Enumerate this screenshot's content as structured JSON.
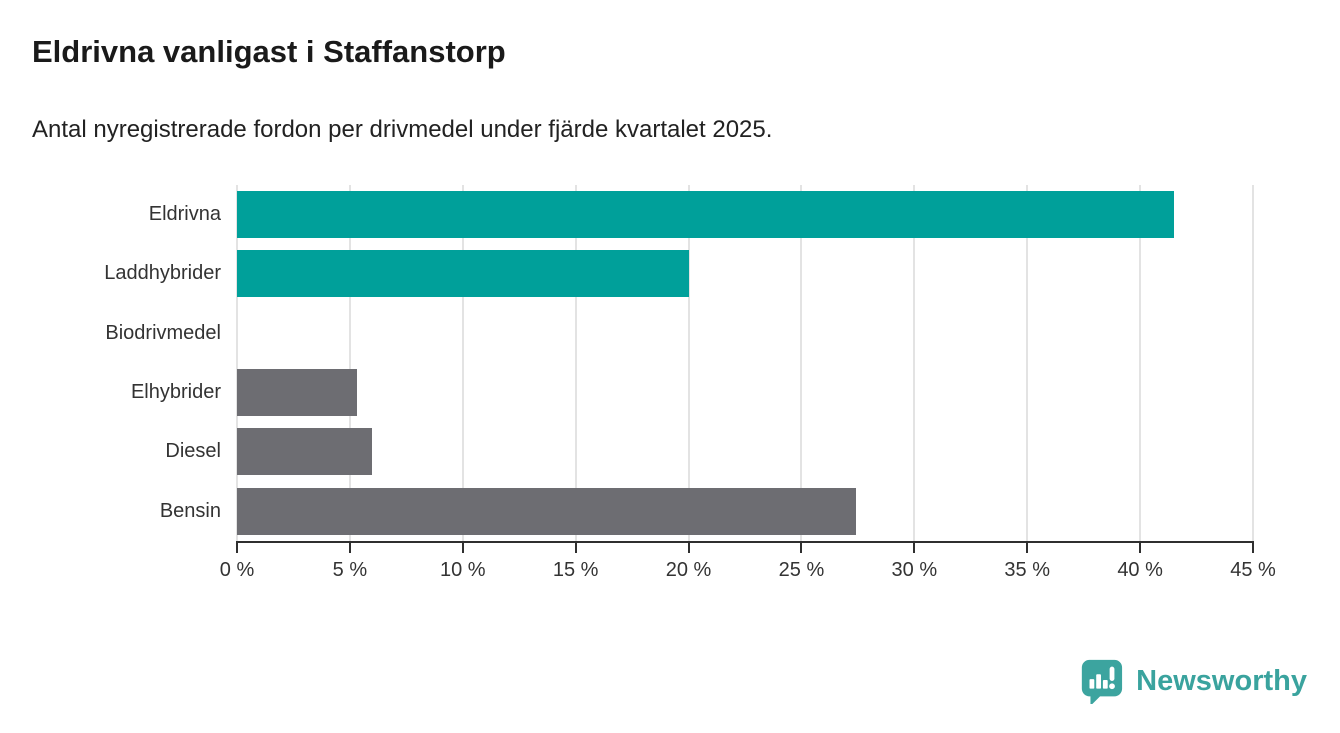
{
  "header": {
    "title": "Eldrivna vanligast i Staffanstorp",
    "subtitle": "Antal nyregistrerade fordon per drivmedel under fjärde kvartalet 2025."
  },
  "chart_data": {
    "type": "bar",
    "orientation": "horizontal",
    "title": "Eldrivna vanligast i Staffanstorp",
    "subtitle": "Antal nyregistrerade fordon per drivmedel under fjärde kvartalet 2025.",
    "categories": [
      "Eldrivna",
      "Laddhybrider",
      "Biodrivmedel",
      "Elhybrider",
      "Diesel",
      "Bensin"
    ],
    "values": [
      41.5,
      20.0,
      0.0,
      5.3,
      6.0,
      27.4
    ],
    "unit": "%",
    "xlabel": "",
    "ylabel": "",
    "xlim": [
      0,
      45
    ],
    "x_ticks": [
      0,
      5,
      10,
      15,
      20,
      25,
      30,
      35,
      40,
      45
    ],
    "x_tick_labels": [
      "0 %",
      "5 %",
      "10 %",
      "15 %",
      "20 %",
      "25 %",
      "30 %",
      "35 %",
      "40 %",
      "45 %"
    ],
    "bar_colors": [
      "#00a09a",
      "#00a09a",
      "#6d6d72",
      "#6d6d72",
      "#6d6d72",
      "#6d6d72"
    ],
    "grid": true,
    "legend": "none"
  },
  "colors": {
    "accent_teal": "#00a09a",
    "neutral_gray": "#6d6d72",
    "gridline": "#e3e3e3",
    "axis": "#2f2f2f",
    "text": "#333333",
    "brand": "#3aa39e"
  },
  "footer": {
    "brand": "Newsworthy"
  }
}
